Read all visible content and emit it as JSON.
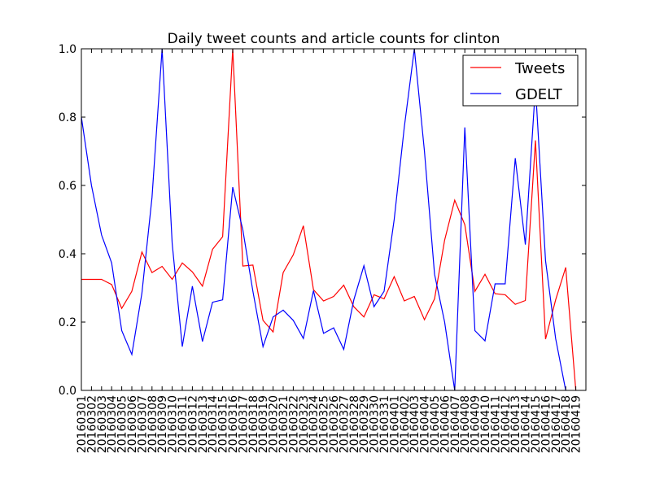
{
  "chart_data": {
    "type": "line",
    "title": "Daily tweet counts and article counts for clinton",
    "xlabel": "",
    "ylabel": "",
    "ylim": [
      0,
      1.0
    ],
    "yticks": [
      "0.0",
      "0.2",
      "0.4",
      "0.6",
      "0.8",
      "1.0"
    ],
    "grid": false,
    "legend_position": "top-right",
    "categories": [
      "20160301",
      "20160302",
      "20160303",
      "20160304",
      "20160305",
      "20160306",
      "20160307",
      "20160308",
      "20160309",
      "20160310",
      "20160311",
      "20160312",
      "20160313",
      "20160314",
      "20160315",
      "20160316",
      "20160317",
      "20160318",
      "20160319",
      "20160320",
      "20160321",
      "20160322",
      "20160323",
      "20160324",
      "20160325",
      "20160326",
      "20160327",
      "20160328",
      "20160329",
      "20160330",
      "20160331",
      "20160401",
      "20160402",
      "20160403",
      "20160404",
      "20160405",
      "20160406",
      "20160407",
      "20160408",
      "20160409",
      "20160410",
      "20160411",
      "20160412",
      "20160413",
      "20160414",
      "20160415",
      "20160416",
      "20160417",
      "20160418",
      "20160419"
    ],
    "series": [
      {
        "name": "Tweets",
        "color": "#ff0000",
        "values": [
          0.325,
          0.325,
          0.325,
          0.31,
          0.24,
          0.29,
          0.405,
          0.345,
          0.363,
          0.325,
          0.373,
          0.347,
          0.305,
          0.413,
          0.45,
          1.0,
          0.364,
          0.367,
          0.205,
          0.171,
          0.345,
          0.397,
          0.482,
          0.295,
          0.262,
          0.275,
          0.308,
          0.245,
          0.215,
          0.28,
          0.268,
          0.333,
          0.262,
          0.275,
          0.207,
          0.268,
          0.44,
          0.557,
          0.485,
          0.29,
          0.34,
          0.283,
          0.28,
          0.252,
          0.263,
          0.732,
          0.15,
          0.265,
          0.36,
          0.0
        ]
      },
      {
        "name": "GDELT",
        "color": "#0000ff",
        "values": [
          0.8,
          0.6,
          0.455,
          0.373,
          0.175,
          0.105,
          0.285,
          0.565,
          1.0,
          0.43,
          0.128,
          0.305,
          0.143,
          0.258,
          0.265,
          0.595,
          0.47,
          0.29,
          0.128,
          0.215,
          0.235,
          0.205,
          0.152,
          0.292,
          0.167,
          0.183,
          0.12,
          0.265,
          0.365,
          0.245,
          0.29,
          0.5,
          0.77,
          1.0,
          0.7,
          0.34,
          0.2,
          0.0,
          0.77,
          0.175,
          0.145,
          0.312,
          0.312,
          0.68,
          0.427,
          0.89,
          0.38,
          0.152,
          0.0,
          null
        ]
      }
    ]
  }
}
